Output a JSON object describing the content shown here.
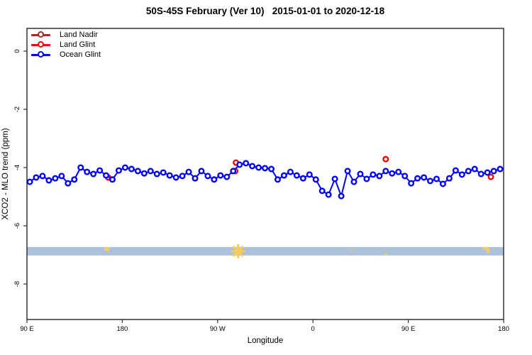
{
  "title": "50S-45S February (Ver 10)   2015-01-01 to 2020-12-18",
  "legend": {
    "items": [
      {
        "label": "Land Nadir",
        "color": "#A52A2A"
      },
      {
        "label": "Land Glint",
        "color": "#FF0000"
      },
      {
        "label": "Ocean Glint",
        "color": "#0000FF"
      }
    ]
  },
  "colors": {
    "land_nadir": "#A52A2A",
    "land_glint": "#FF0000",
    "ocean_glint": "#0000FF",
    "box": "#333333",
    "strip_ocean": "#ABC1DC",
    "strip_land": "#F6CC60"
  },
  "chart_data": {
    "type": "line",
    "title": "50S-45S February (Ver 10)   2015-01-01 to 2020-12-18",
    "xlabel": "Longitude",
    "ylabel": "XCO2 - MLO trend (ppm)",
    "x_axis_note": "longitude axis wraps: 90E to 180 to 90W to 0 to 90E to 180; d = degrees east of 90E along axis (0..450)",
    "xticks": [
      {
        "label": "90 E",
        "d": 0
      },
      {
        "label": "180",
        "d": 90
      },
      {
        "label": "90 W",
        "d": 180
      },
      {
        "label": "0",
        "d": 270
      },
      {
        "label": "90 E",
        "d": 360
      },
      {
        "label": "180",
        "d": 450
      }
    ],
    "yticks": [
      {
        "label": "0",
        "v": 0
      },
      {
        "label": "-2",
        "v": -2
      },
      {
        "label": "-4",
        "v": -4
      },
      {
        "label": "-6",
        "v": -6
      },
      {
        "label": "-8",
        "v": -8
      }
    ],
    "ylim": [
      -9.3,
      0.95
    ],
    "grid": false,
    "legend_position": "top-left-inside",
    "series": [
      {
        "name": "Land Nadir",
        "color": "#A52A2A",
        "connected": false,
        "points": []
      },
      {
        "name": "Land Glint",
        "color": "#FF0000",
        "connected": false,
        "points": [
          [
            76.7,
            -4.34
          ],
          [
            196.7,
            -4.12
          ],
          [
            197.3,
            -3.83
          ],
          [
            338.7,
            -3.71
          ],
          [
            438.0,
            -4.32
          ]
        ]
      },
      {
        "name": "Ocean Glint",
        "color": "#0000FF",
        "connected": true,
        "points": [
          [
            2.7,
            -4.49
          ],
          [
            8.7,
            -4.34
          ],
          [
            14.7,
            -4.29
          ],
          [
            20.7,
            -4.44
          ],
          [
            26.7,
            -4.37
          ],
          [
            32.7,
            -4.29
          ],
          [
            38.7,
            -4.54
          ],
          [
            44.7,
            -4.41
          ],
          [
            50.7,
            -4.0
          ],
          [
            56.7,
            -4.15
          ],
          [
            62.7,
            -4.22
          ],
          [
            68.7,
            -4.1
          ],
          [
            74.7,
            -4.27
          ],
          [
            80.7,
            -4.41
          ],
          [
            86.7,
            -4.1
          ],
          [
            92.7,
            -4.0
          ],
          [
            98.7,
            -4.05
          ],
          [
            104.7,
            -4.12
          ],
          [
            110.7,
            -4.2
          ],
          [
            116.7,
            -4.12
          ],
          [
            122.7,
            -4.22
          ],
          [
            128.7,
            -4.17
          ],
          [
            134.7,
            -4.27
          ],
          [
            140.7,
            -4.34
          ],
          [
            146.7,
            -4.29
          ],
          [
            152.7,
            -4.15
          ],
          [
            158.7,
            -4.37
          ],
          [
            164.7,
            -4.12
          ],
          [
            170.7,
            -4.29
          ],
          [
            176.7,
            -4.41
          ],
          [
            182.7,
            -4.27
          ],
          [
            188.7,
            -4.32
          ],
          [
            194.7,
            -4.12
          ],
          [
            200.7,
            -3.9
          ],
          [
            206.7,
            -3.85
          ],
          [
            212.7,
            -3.95
          ],
          [
            218.7,
            -4.0
          ],
          [
            224.7,
            -4.02
          ],
          [
            230.7,
            -4.05
          ],
          [
            236.7,
            -4.41
          ],
          [
            242.7,
            -4.27
          ],
          [
            248.7,
            -4.15
          ],
          [
            254.7,
            -4.27
          ],
          [
            260.7,
            -4.37
          ],
          [
            266.7,
            -4.24
          ],
          [
            272.7,
            -4.41
          ],
          [
            278.7,
            -4.8
          ],
          [
            284.7,
            -4.93
          ],
          [
            290.7,
            -4.39
          ],
          [
            296.7,
            -4.98
          ],
          [
            302.7,
            -4.12
          ],
          [
            308.7,
            -4.49
          ],
          [
            314.7,
            -4.22
          ],
          [
            320.7,
            -4.39
          ],
          [
            326.7,
            -4.24
          ],
          [
            332.7,
            -4.29
          ],
          [
            338.7,
            -4.12
          ],
          [
            344.7,
            -4.2
          ],
          [
            350.7,
            -4.15
          ],
          [
            356.7,
            -4.29
          ],
          [
            362.7,
            -4.54
          ],
          [
            368.7,
            -4.37
          ],
          [
            374.7,
            -4.34
          ],
          [
            380.7,
            -4.46
          ],
          [
            386.7,
            -4.39
          ],
          [
            392.7,
            -4.56
          ],
          [
            398.7,
            -4.37
          ],
          [
            404.7,
            -4.1
          ],
          [
            410.7,
            -4.24
          ],
          [
            416.7,
            -4.12
          ],
          [
            422.7,
            -4.05
          ],
          [
            428.7,
            -4.22
          ],
          [
            434.7,
            -4.17
          ],
          [
            440.7,
            -4.12
          ],
          [
            446.7,
            -4.05
          ]
        ]
      }
    ],
    "map_strip": {
      "description": "latitude-band map strip: ocean in light blue, land patches in orange",
      "v_top": -6.73,
      "v_bottom": -7.02,
      "land_marks": [
        {
          "type": "patch",
          "d": 75.3,
          "w_deg": 4.7,
          "h": 5
        },
        {
          "type": "dot",
          "d": 77.0,
          "size": 2,
          "offset": 6
        },
        {
          "type": "star",
          "d": 199.3
        },
        {
          "type": "dot",
          "d": 306.7,
          "size": 2,
          "offset": 4
        },
        {
          "type": "dot",
          "d": 338.7,
          "size": 3,
          "offset": 8
        },
        {
          "type": "patch",
          "d": 433.3,
          "w_deg": 6.0,
          "h": 4
        },
        {
          "type": "dot",
          "d": 435.3,
          "size": 4,
          "offset": 4
        }
      ]
    }
  }
}
